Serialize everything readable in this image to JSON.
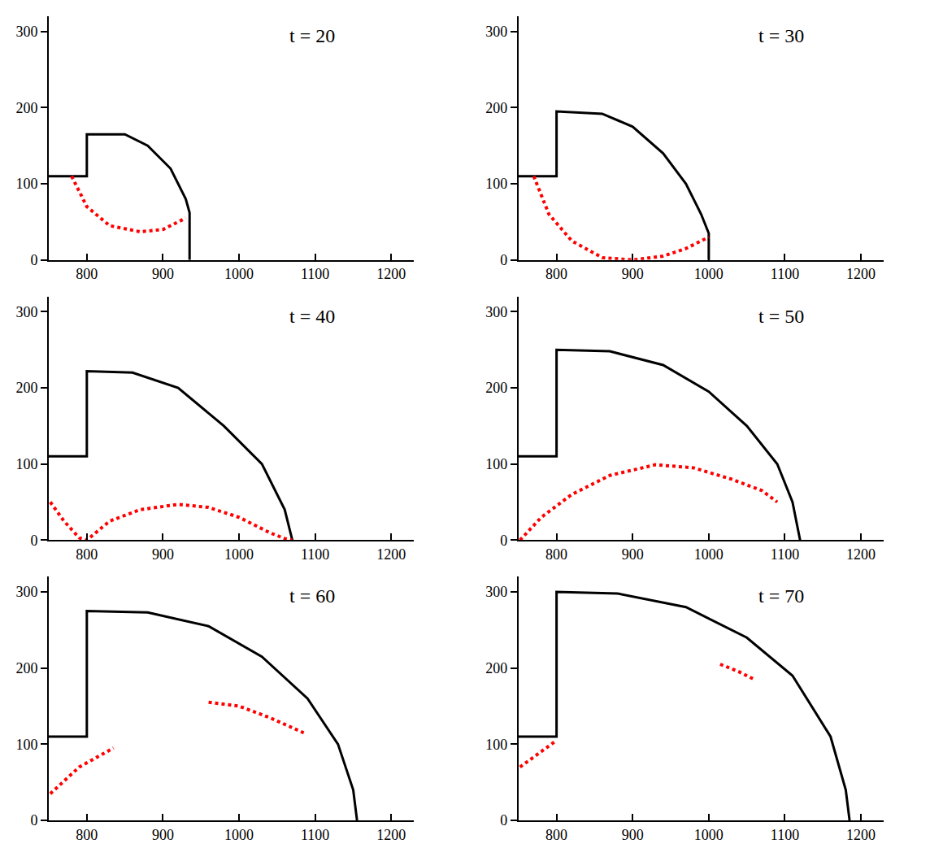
{
  "chart_data": [
    {
      "type": "line",
      "title": "t = 20",
      "xlim": [
        750,
        1230
      ],
      "ylim": [
        0,
        320
      ],
      "xticks": [
        800,
        900,
        1000,
        1100,
        1200
      ],
      "yticks": [
        0,
        100,
        200,
        300
      ],
      "series": [
        {
          "color": "#000000",
          "line_style": "solid",
          "x": [
            750,
            800,
            800,
            850,
            880,
            910,
            930,
            935,
            935
          ],
          "values": [
            110,
            110,
            165,
            165,
            150,
            120,
            80,
            62,
            0
          ]
        },
        {
          "color": "#ff0000",
          "line_style": "dot",
          "x": [
            780,
            800,
            830,
            870,
            900,
            930
          ],
          "values": [
            110,
            70,
            45,
            37,
            40,
            55
          ]
        }
      ]
    },
    {
      "type": "line",
      "title": "t = 30",
      "xlim": [
        750,
        1230
      ],
      "ylim": [
        0,
        320
      ],
      "xticks": [
        800,
        900,
        1000,
        1100,
        1200
      ],
      "yticks": [
        0,
        100,
        200,
        300
      ],
      "series": [
        {
          "color": "#000000",
          "line_style": "solid",
          "x": [
            750,
            800,
            800,
            860,
            900,
            940,
            970,
            990,
            1000,
            1000
          ],
          "values": [
            110,
            110,
            195,
            192,
            175,
            140,
            100,
            60,
            35,
            0
          ]
        },
        {
          "color": "#ff0000",
          "line_style": "dot",
          "x": [
            770,
            790,
            820,
            860,
            900,
            940,
            970,
            1000
          ],
          "values": [
            110,
            60,
            25,
            3,
            0,
            5,
            15,
            30
          ]
        }
      ]
    },
    {
      "type": "line",
      "title": "t = 40",
      "xlim": [
        750,
        1230
      ],
      "ylim": [
        0,
        320
      ],
      "xticks": [
        800,
        900,
        1000,
        1100,
        1200
      ],
      "yticks": [
        0,
        100,
        200,
        300
      ],
      "series": [
        {
          "color": "#000000",
          "line_style": "solid",
          "x": [
            750,
            800,
            800,
            860,
            920,
            980,
            1030,
            1060,
            1070
          ],
          "values": [
            110,
            110,
            222,
            220,
            200,
            150,
            100,
            40,
            0
          ]
        },
        {
          "color": "#ff0000",
          "line_style": "dot",
          "x": [
            752,
            770,
            790,
            800,
            830,
            870,
            920,
            960,
            1000,
            1040,
            1060,
            1070
          ],
          "values": [
            50,
            25,
            3,
            0,
            25,
            40,
            47,
            43,
            30,
            10,
            2,
            0
          ]
        }
      ]
    },
    {
      "type": "line",
      "title": "t = 50",
      "xlim": [
        750,
        1230
      ],
      "ylim": [
        0,
        320
      ],
      "xticks": [
        800,
        900,
        1000,
        1100,
        1200
      ],
      "yticks": [
        0,
        100,
        200,
        300
      ],
      "series": [
        {
          "color": "#000000",
          "line_style": "solid",
          "x": [
            750,
            800,
            800,
            870,
            940,
            1000,
            1050,
            1090,
            1110,
            1120
          ],
          "values": [
            110,
            110,
            250,
            248,
            230,
            195,
            150,
            100,
            50,
            0
          ]
        },
        {
          "color": "#ff0000",
          "line_style": "dot",
          "x": [
            752,
            780,
            820,
            870,
            930,
            980,
            1030,
            1070,
            1090
          ],
          "values": [
            0,
            30,
            60,
            85,
            99,
            95,
            80,
            65,
            50
          ]
        }
      ]
    },
    {
      "type": "line",
      "title": "t = 60",
      "xlim": [
        750,
        1230
      ],
      "ylim": [
        0,
        320
      ],
      "xticks": [
        800,
        900,
        1000,
        1100,
        1200
      ],
      "yticks": [
        0,
        100,
        200,
        300
      ],
      "series": [
        {
          "color": "#000000",
          "line_style": "solid",
          "x": [
            750,
            800,
            800,
            880,
            960,
            1030,
            1090,
            1130,
            1150,
            1155
          ],
          "values": [
            110,
            110,
            275,
            273,
            255,
            215,
            160,
            100,
            40,
            0
          ]
        },
        {
          "color": "#ff0000",
          "line_style": "dot",
          "x": [
            752,
            790,
            835,
            900,
            960,
            1000,
            1040,
            1085
          ],
          "values": [
            35,
            70,
            95,
            null,
            155,
            150,
            135,
            115
          ]
        }
      ]
    },
    {
      "type": "line",
      "title": "t = 70",
      "xlim": [
        750,
        1230
      ],
      "ylim": [
        0,
        320
      ],
      "xticks": [
        800,
        900,
        1000,
        1100,
        1200
      ],
      "yticks": [
        0,
        100,
        200,
        300
      ],
      "series": [
        {
          "color": "#000000",
          "line_style": "solid",
          "x": [
            750,
            800,
            800,
            880,
            970,
            1050,
            1110,
            1160,
            1180,
            1185
          ],
          "values": [
            110,
            110,
            300,
            298,
            280,
            240,
            190,
            110,
            40,
            0
          ]
        },
        {
          "color": "#ff0000",
          "line_style": "dot",
          "x": [
            752,
            780,
            800,
            900,
            1015,
            1040,
            1060
          ],
          "values": [
            70,
            90,
            105,
            null,
            205,
            195,
            185
          ]
        }
      ]
    }
  ]
}
